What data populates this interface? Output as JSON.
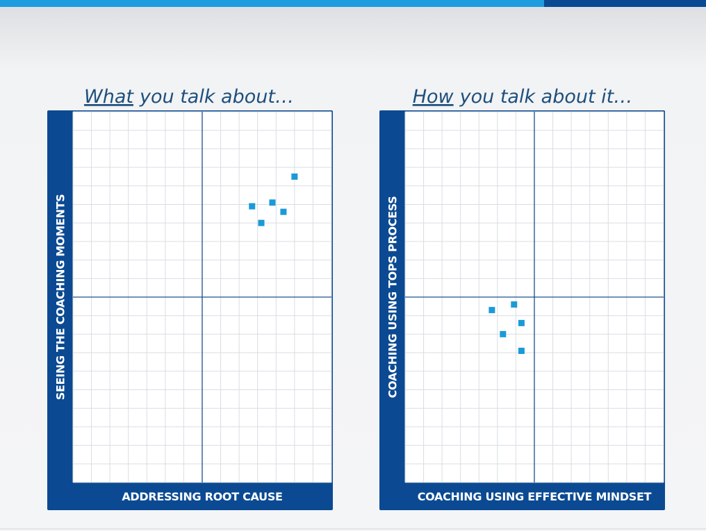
{
  "chart_data": [
    {
      "type": "scatter",
      "title_emphasis": "What",
      "title": "you talk about…",
      "x_label": "ADDRESSING ROOT CAUSE",
      "y_label": "SEEING THE COACHING MOMENTS",
      "xlim": [
        -7,
        7
      ],
      "ylim": [
        -10,
        10
      ],
      "grid": true,
      "color": "#1b9ad8",
      "x": [
        5.0,
        2.7,
        3.8,
        4.4,
        3.2
      ],
      "y": [
        6.5,
        4.9,
        5.1,
        4.6,
        4.0
      ]
    },
    {
      "type": "scatter",
      "title_emphasis": "How",
      "title": "you talk about it…",
      "x_label": "COACHING USING EFFECTIVE MINDSET",
      "y_label": "COACHING USING TOPS PROCESS",
      "xlim": [
        -7,
        7
      ],
      "ylim": [
        -10,
        10
      ],
      "grid": true,
      "color": "#1b9ad8",
      "x": [
        -2.3,
        -1.1,
        -0.7,
        -1.7,
        -0.7
      ],
      "y": [
        -0.7,
        -0.4,
        -1.4,
        -2.0,
        -2.9
      ]
    }
  ]
}
